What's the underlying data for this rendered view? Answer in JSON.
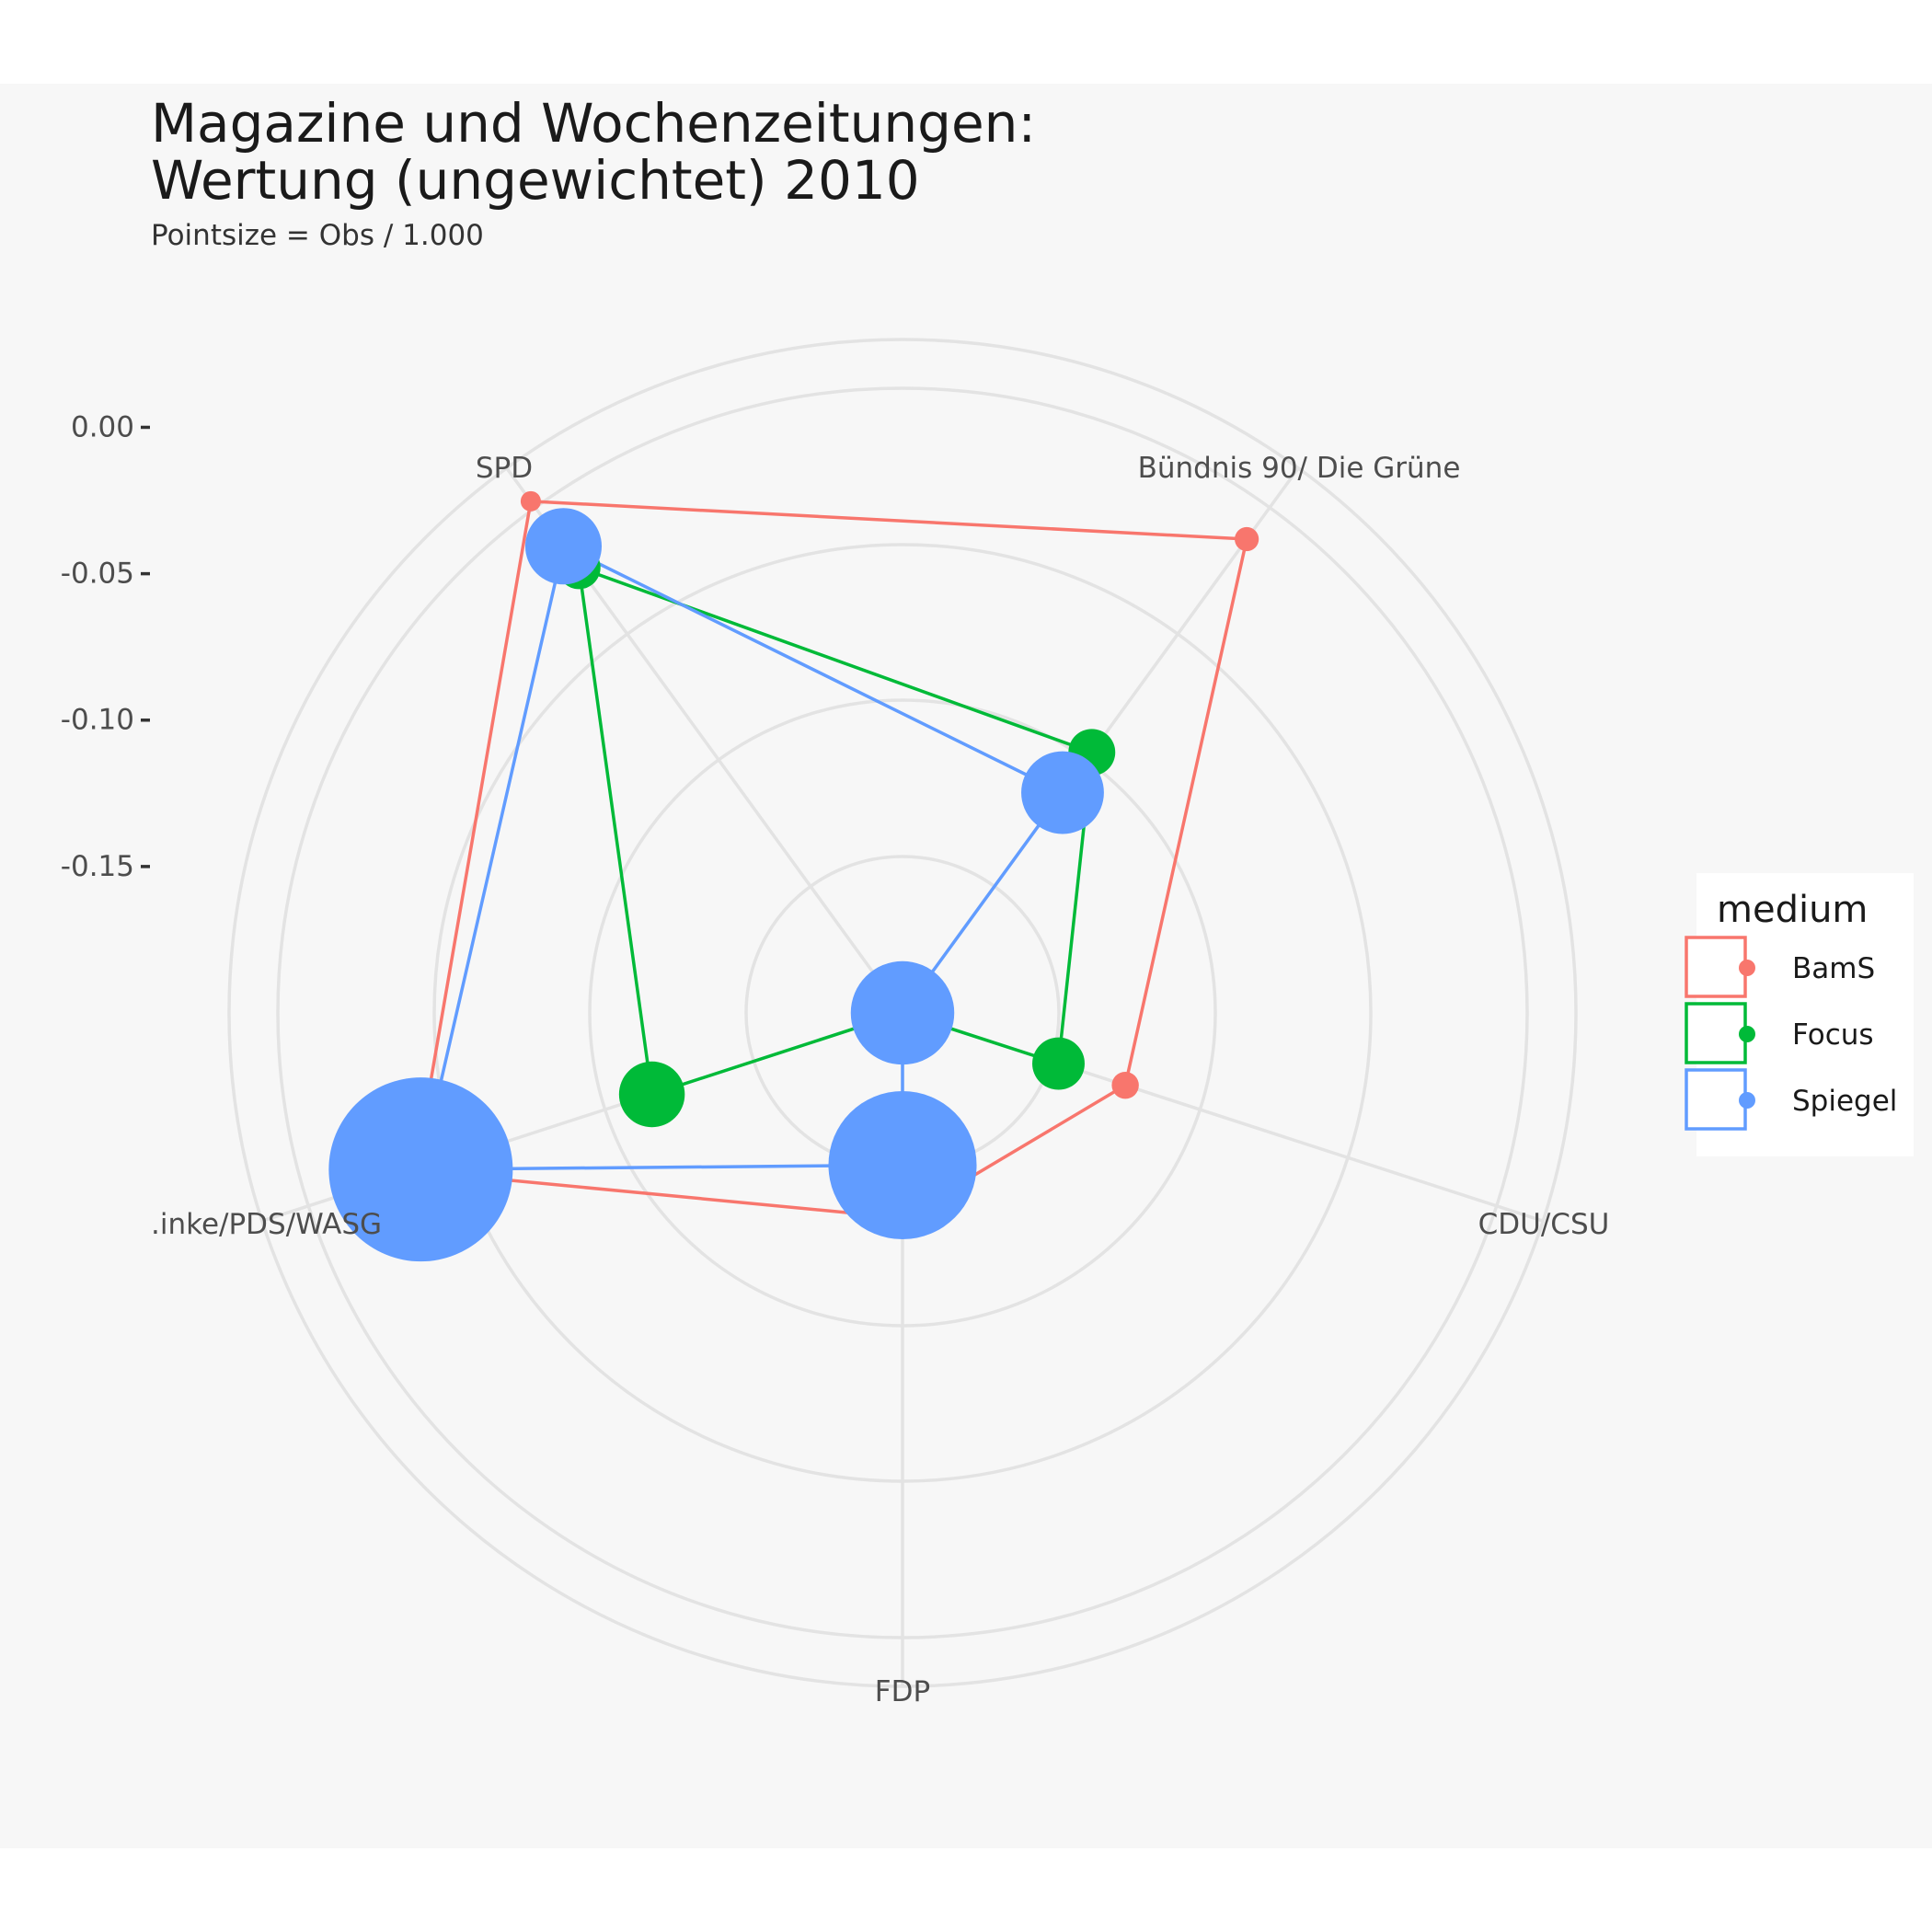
{
  "chart_data": {
    "type": "radar",
    "title_lines": [
      "Magazine und Wochenzeitungen:",
      "Wertung (ungewichtet) 2010"
    ],
    "subtitle": "Pointsize = Obs / 1.000",
    "categories": [
      "Bündnis 90/ Die Grüne",
      "CDU/CSU",
      "FDP",
      "Linke/PDS/WASG",
      "SPD"
    ],
    "category_labels": [
      "Bündnis 90/ Die Grüne",
      "CDU/CSU",
      "FDP",
      ".inke/PDS/WASG",
      "SPD"
    ],
    "y_ticks": [
      0.0,
      -0.05,
      -0.1,
      -0.15
    ],
    "y_tick_labels": [
      "0.00",
      "-0.05",
      "-0.10",
      "-0.15"
    ],
    "ylim": [
      -0.2,
      0.03
    ],
    "grid": true,
    "legend": {
      "title": "medium",
      "position": "right"
    },
    "series": [
      {
        "name": "BamS",
        "color": "#F8766D",
        "values": [
          0.016,
          0.0,
          -0.12,
          -0.13,
          -0.025
        ],
        "sizes": [
          0.1,
          0.2,
          0.3,
          0.3,
          0.8
        ]
      },
      {
        "name": "Focus",
        "color": "#00BA38",
        "values": [
          -0.012,
          -0.09,
          -0.144,
          -0.2,
          -0.11
        ],
        "sizes": [
          1.2,
          1.5,
          2.0,
          2.5,
          3.5
        ]
      },
      {
        "name": "Spiegel",
        "color": "#619CFF",
        "values": [
          -0.003,
          -0.107,
          -0.2,
          -0.148,
          -0.027
        ],
        "sizes": [
          5,
          6,
          10,
          22,
          35
        ]
      }
    ]
  }
}
